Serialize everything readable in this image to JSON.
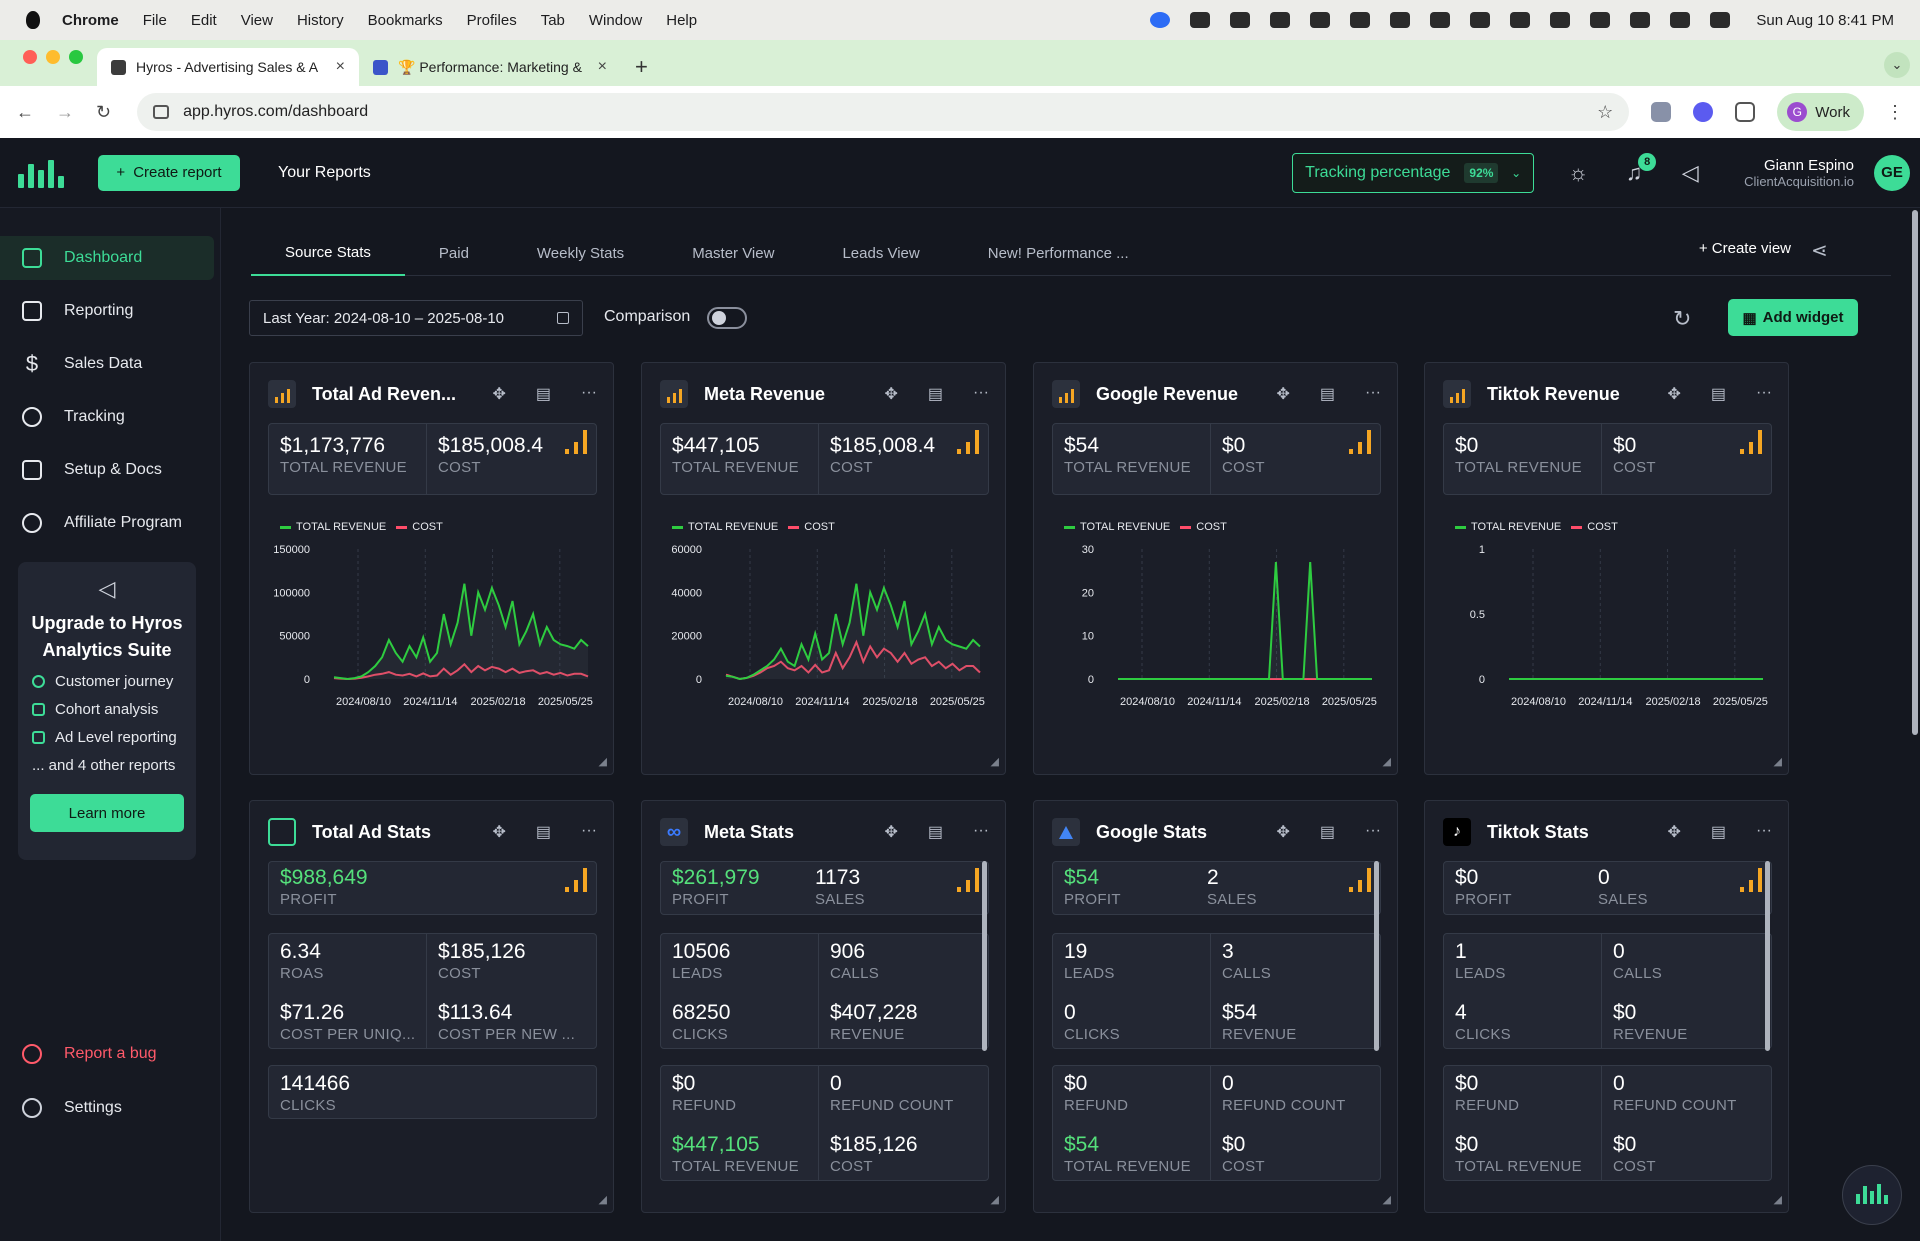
{
  "menubar": {
    "app": "Chrome",
    "items": [
      "File",
      "Edit",
      "View",
      "History",
      "Bookmarks",
      "Profiles",
      "Tab",
      "Window",
      "Help"
    ],
    "clock": "Sun Aug 10  8:41 PM"
  },
  "browser": {
    "tabs": [
      {
        "title": "Hyros - Advertising Sales & A"
      },
      {
        "title": "🏆 Performance: Marketing &"
      }
    ],
    "url": "app.hyros.com/dashboard",
    "profile": "Work",
    "profile_initial": "G"
  },
  "header": {
    "create_report": "Create report",
    "your_reports": "Your Reports",
    "tracking_label": "Tracking percentage",
    "tracking_value": "92%",
    "notifications": "8",
    "user_name": "Giann Espino",
    "user_company": "ClientAcquisition.io",
    "user_initials": "GE"
  },
  "sidebar": {
    "items": [
      {
        "label": "Dashboard"
      },
      {
        "label": "Reporting"
      },
      {
        "label": "Sales Data"
      },
      {
        "label": "Tracking"
      },
      {
        "label": "Setup & Docs"
      },
      {
        "label": "Affiliate Program"
      }
    ],
    "upgrade": {
      "title": "Upgrade to Hyros Analytics Suite",
      "features": [
        "Customer journey",
        "Cohort analysis",
        "Ad Level reporting",
        "... and 4 other reports"
      ],
      "cta": "Learn more"
    },
    "report_bug": "Report a bug",
    "settings": "Settings"
  },
  "view_tabs": [
    "Source Stats",
    "Paid",
    "Weekly Stats",
    "Master View",
    "Leads View",
    "New! Performance ..."
  ],
  "toolbar": {
    "create_view": "Create view",
    "date_range": "Last Year: 2024-08-10 – 2025-08-10",
    "comparison": "Comparison",
    "add_widget": "Add widget"
  },
  "revenue_cards": [
    {
      "title": "Total Ad Reven...",
      "revenue": "$1,173,776",
      "revenue_label": "TOTAL REVENUE",
      "cost": "$185,008.4",
      "cost_label": "COST",
      "legend_revenue": "TOTAL REVENUE",
      "legend_cost": "COST",
      "yticks": [
        "150000",
        "100000",
        "50000",
        "0"
      ],
      "xticks": [
        "2024/08/10",
        "2024/11/14",
        "2025/02/18",
        "2025/05/25"
      ]
    },
    {
      "title": "Meta Revenue",
      "revenue": "$447,105",
      "revenue_label": "TOTAL REVENUE",
      "cost": "$185,008.4",
      "cost_label": "COST",
      "legend_revenue": "TOTAL REVENUE",
      "legend_cost": "COST",
      "yticks": [
        "60000",
        "40000",
        "20000",
        "0"
      ],
      "xticks": [
        "2024/08/10",
        "2024/11/14",
        "2025/02/18",
        "2025/05/25"
      ]
    },
    {
      "title": "Google Revenue",
      "revenue": "$54",
      "revenue_label": "TOTAL REVENUE",
      "cost": "$0",
      "cost_label": "COST",
      "legend_revenue": "TOTAL REVENUE",
      "legend_cost": "COST",
      "yticks": [
        "30",
        "20",
        "10",
        "0"
      ],
      "xticks": [
        "2024/08/10",
        "2024/11/14",
        "2025/02/18",
        "2025/05/25"
      ]
    },
    {
      "title": "Tiktok Revenue",
      "revenue": "$0",
      "revenue_label": "TOTAL REVENUE",
      "cost": "$0",
      "cost_label": "COST",
      "legend_revenue": "TOTAL REVENUE",
      "legend_cost": "COST",
      "yticks": [
        "1",
        "0.5",
        "0"
      ],
      "xticks": [
        "2024/08/10",
        "2024/11/14",
        "2025/02/18",
        "2025/05/25"
      ]
    }
  ],
  "chart_data": [
    {
      "type": "line",
      "title": "Total Ad Reven...",
      "ylim": [
        0,
        150000
      ],
      "series": [
        {
          "name": "TOTAL REVENUE",
          "color": "#2ecc40",
          "values": [
            2000,
            1000,
            0,
            1000,
            3000,
            8000,
            15000,
            25000,
            45000,
            30000,
            20000,
            38000,
            25000,
            48000,
            20000,
            30000,
            75000,
            40000,
            65000,
            110000,
            50000,
            100000,
            80000,
            105000,
            85000,
            60000,
            90000,
            40000,
            55000,
            75000,
            40000,
            60000,
            45000,
            40000,
            38000,
            35000,
            45000,
            38000
          ]
        },
        {
          "name": "COST",
          "color": "#ff4d6a",
          "values": [
            1000,
            500,
            0,
            500,
            1500,
            3000,
            5000,
            6000,
            8000,
            5000,
            4000,
            6000,
            3000,
            6500,
            3000,
            4000,
            12000,
            5000,
            10000,
            17000,
            8000,
            15000,
            10000,
            14000,
            12000,
            8000,
            12000,
            7000,
            9000,
            10000,
            6000,
            8000,
            5000,
            7000,
            4000,
            6000,
            6000,
            3000
          ]
        }
      ]
    },
    {
      "type": "line",
      "title": "Meta Revenue",
      "ylim": [
        0,
        60000
      ],
      "series": [
        {
          "name": "TOTAL REVENUE",
          "color": "#2ecc40",
          "values": [
            1500,
            1000,
            0,
            500,
            2000,
            4000,
            6000,
            9000,
            14000,
            8000,
            6000,
            16000,
            9000,
            21000,
            9000,
            12000,
            30000,
            16000,
            26000,
            44000,
            20000,
            40000,
            32000,
            42000,
            34000,
            24000,
            36000,
            16000,
            22000,
            30000,
            16000,
            24000,
            18000,
            16000,
            15000,
            14000,
            18000,
            15000
          ]
        },
        {
          "name": "COST",
          "color": "#ff4d6a",
          "values": [
            2000,
            1000,
            0,
            500,
            1500,
            3000,
            5000,
            6000,
            8000,
            5000,
            4000,
            6000,
            3000,
            6500,
            3000,
            4000,
            12000,
            5000,
            10000,
            17000,
            8000,
            15000,
            10000,
            14000,
            12000,
            8000,
            12000,
            7000,
            9000,
            10000,
            6000,
            8000,
            5000,
            7000,
            4000,
            6000,
            6000,
            3000
          ]
        }
      ]
    },
    {
      "type": "line",
      "title": "Google Revenue",
      "ylim": [
        0,
        30
      ],
      "series": [
        {
          "name": "TOTAL REVENUE",
          "color": "#2ecc40",
          "values": [
            0,
            0,
            0,
            0,
            0,
            0,
            0,
            0,
            0,
            0,
            0,
            0,
            0,
            0,
            0,
            0,
            0,
            0,
            0,
            0,
            0,
            0,
            0,
            27,
            0,
            0,
            0,
            0,
            27,
            0,
            0,
            0,
            0,
            0,
            0,
            0,
            0,
            0
          ]
        },
        {
          "name": "COST",
          "color": "#ff4d6a",
          "values": [
            0,
            0,
            0,
            0,
            0,
            0,
            0,
            0,
            0,
            0,
            0,
            0,
            0,
            0,
            0,
            0,
            0,
            0,
            0,
            0,
            0,
            0,
            0,
            0,
            0,
            0,
            0,
            0,
            0,
            0,
            0,
            0,
            0,
            0,
            0,
            0,
            0,
            0
          ]
        }
      ]
    },
    {
      "type": "line",
      "title": "Tiktok Revenue",
      "ylim": [
        0,
        1
      ],
      "series": [
        {
          "name": "TOTAL REVENUE",
          "color": "#2ecc40",
          "values": [
            0,
            0,
            0,
            0,
            0,
            0,
            0,
            0,
            0,
            0,
            0,
            0,
            0,
            0,
            0,
            0,
            0,
            0,
            0,
            0,
            0,
            0,
            0,
            0,
            0,
            0,
            0,
            0,
            0,
            0,
            0,
            0,
            0,
            0,
            0,
            0,
            0,
            0
          ]
        },
        {
          "name": "COST",
          "color": "#ff4d6a",
          "values": [
            0,
            0,
            0,
            0,
            0,
            0,
            0,
            0,
            0,
            0,
            0,
            0,
            0,
            0,
            0,
            0,
            0,
            0,
            0,
            0,
            0,
            0,
            0,
            0,
            0,
            0,
            0,
            0,
            0,
            0,
            0,
            0,
            0,
            0,
            0,
            0,
            0,
            0
          ]
        }
      ]
    }
  ],
  "stats_cards": [
    {
      "title": "Total Ad Stats",
      "top": [
        {
          "v": "$988,649",
          "l": "PROFIT",
          "green": true
        }
      ],
      "grid": [
        {
          "v": "6.34",
          "l": "ROAS"
        },
        {
          "v": "$185,126",
          "l": "COST"
        },
        {
          "v": "$71.26",
          "l": "COST PER UNIQ..."
        },
        {
          "v": "$113.64",
          "l": "COST PER NEW ..."
        }
      ],
      "grid2": [
        {
          "v": "141466",
          "l": "CLICKS"
        }
      ]
    },
    {
      "title": "Meta Stats",
      "top": [
        {
          "v": "$261,979",
          "l": "PROFIT",
          "green": true
        },
        {
          "v": "1173",
          "l": "SALES"
        }
      ],
      "grid": [
        {
          "v": "10506",
          "l": "LEADS"
        },
        {
          "v": "906",
          "l": "CALLS"
        },
        {
          "v": "68250",
          "l": "CLICKS"
        },
        {
          "v": "$407,228",
          "l": "REVENUE"
        }
      ],
      "grid2": [
        {
          "v": "$0",
          "l": "REFUND"
        },
        {
          "v": "0",
          "l": "REFUND COUNT"
        },
        {
          "v": "$447,105",
          "l": "TOTAL REVENUE",
          "green": true
        },
        {
          "v": "$185,126",
          "l": "COST"
        }
      ]
    },
    {
      "title": "Google Stats",
      "top": [
        {
          "v": "$54",
          "l": "PROFIT",
          "green": true
        },
        {
          "v": "2",
          "l": "SALES"
        }
      ],
      "grid": [
        {
          "v": "19",
          "l": "LEADS"
        },
        {
          "v": "3",
          "l": "CALLS"
        },
        {
          "v": "0",
          "l": "CLICKS"
        },
        {
          "v": "$54",
          "l": "REVENUE"
        }
      ],
      "grid2": [
        {
          "v": "$0",
          "l": "REFUND"
        },
        {
          "v": "0",
          "l": "REFUND COUNT"
        },
        {
          "v": "$54",
          "l": "TOTAL REVENUE",
          "green": true
        },
        {
          "v": "$0",
          "l": "COST"
        }
      ]
    },
    {
      "title": "Tiktok Stats",
      "top": [
        {
          "v": "$0",
          "l": "PROFIT"
        },
        {
          "v": "0",
          "l": "SALES"
        }
      ],
      "grid": [
        {
          "v": "1",
          "l": "LEADS"
        },
        {
          "v": "0",
          "l": "CALLS"
        },
        {
          "v": "4",
          "l": "CLICKS"
        },
        {
          "v": "$0",
          "l": "REVENUE"
        }
      ],
      "grid2": [
        {
          "v": "$0",
          "l": "REFUND"
        },
        {
          "v": "0",
          "l": "REFUND COUNT"
        },
        {
          "v": "$0",
          "l": "TOTAL REVENUE"
        },
        {
          "v": "$0",
          "l": "COST"
        }
      ]
    }
  ],
  "colors": {
    "accent": "#3ddc97",
    "revenue_line": "#2ecc40",
    "cost_line": "#ff4d6a",
    "bars": "#f5a623"
  }
}
